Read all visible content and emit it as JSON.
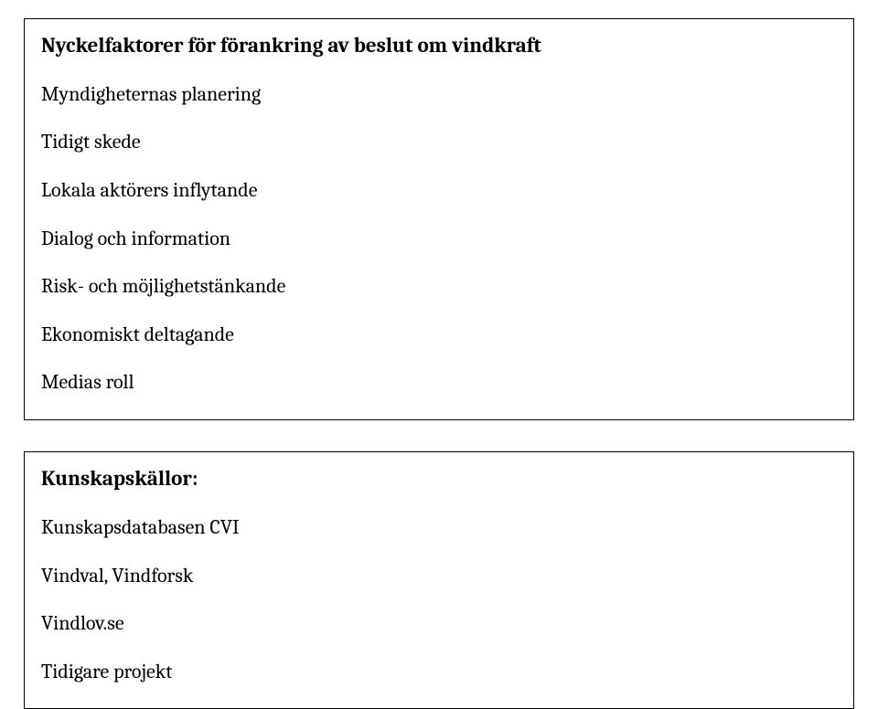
{
  "box1": {
    "heading": "Nyckelfaktorer för förankring av beslut om vindkraft",
    "items": [
      "Myndigheternas planering",
      "Tidigt skede",
      "Lokala aktörers inflytande",
      "Dialog och information",
      "Risk- och möjlighetstänkande",
      "Ekonomiskt deltagande",
      "Medias roll"
    ]
  },
  "box2": {
    "heading": "Kunskapskällor:",
    "items": [
      "Kunskapsdatabasen CVI",
      "Vindval, Vindforsk",
      "Vindlov.se",
      "Tidigare projekt"
    ]
  },
  "colors": {
    "text": "#000000",
    "background": "#ffffff",
    "border": "#000000"
  },
  "typography": {
    "font_family": "Cambria / Georgia serif",
    "heading_fontsize_pt": 17,
    "body_fontsize_pt": 16,
    "heading_weight": "bold",
    "body_weight": "normal"
  }
}
